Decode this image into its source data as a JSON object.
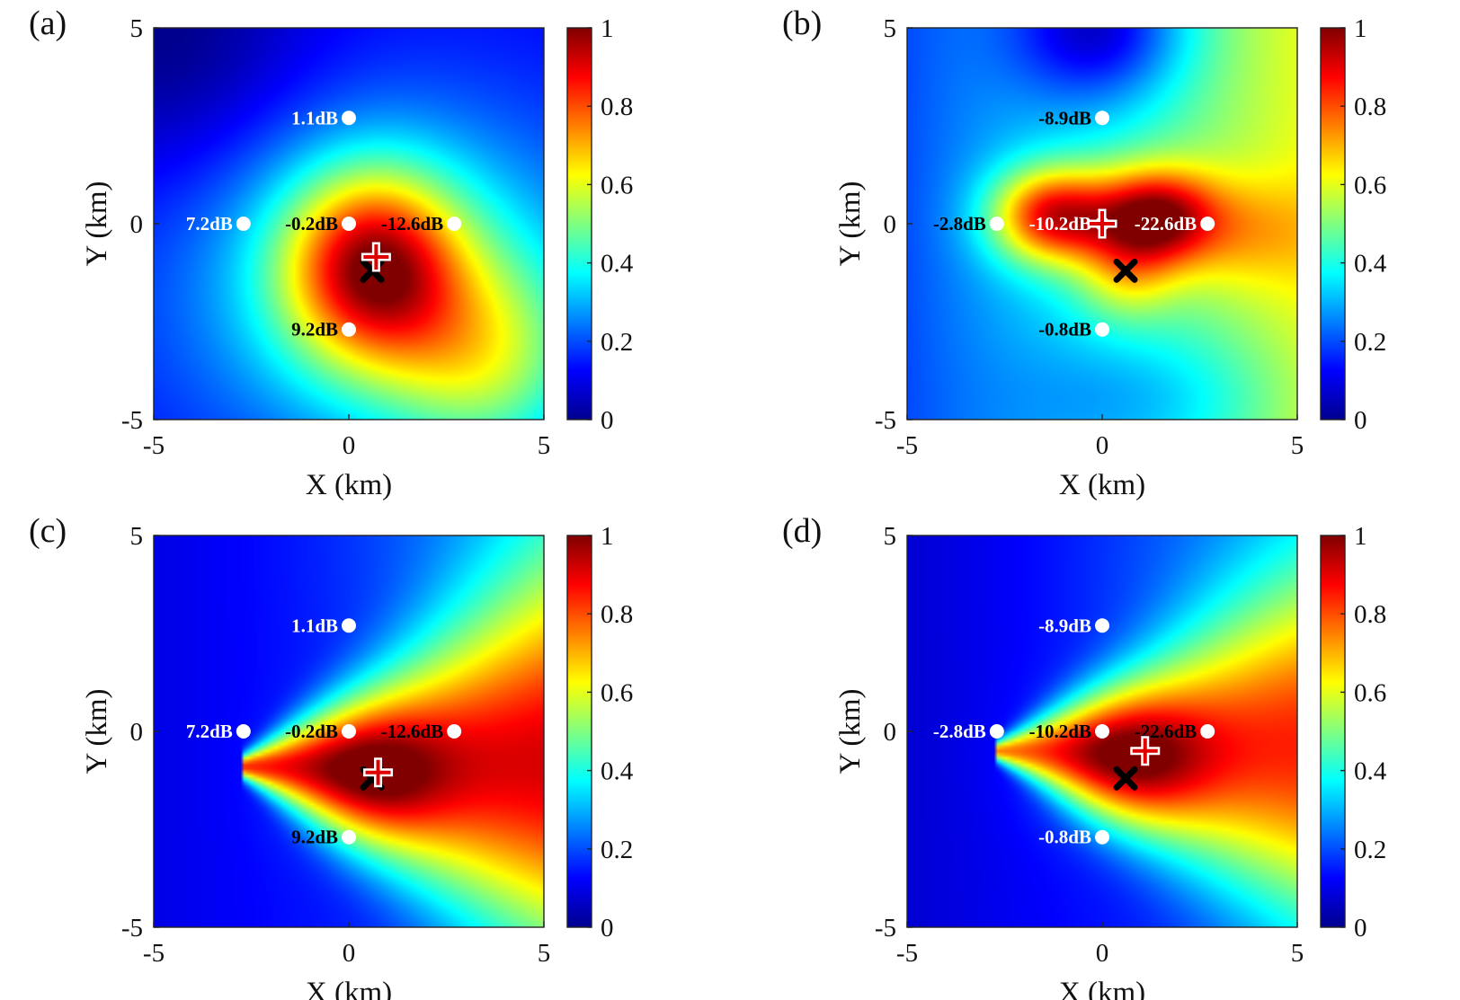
{
  "chart_data": [
    {
      "panel": "(a)",
      "type": "heatmap",
      "xlabel": "X (km)",
      "ylabel": "Y (km)",
      "xlim": [
        -5,
        5
      ],
      "ylim": [
        -5,
        5
      ],
      "xticks": [
        "-5",
        "0",
        "5"
      ],
      "yticks": [
        "-5",
        "0",
        "5"
      ],
      "colorbar": {
        "range": [
          0,
          1
        ],
        "ticks": [
          "0",
          "0.2",
          "0.4",
          "0.6",
          "0.8",
          "1"
        ],
        "colormap": "jet"
      },
      "sensors": [
        {
          "x": 0,
          "y": 2.7,
          "label": "1.1dB"
        },
        {
          "x": -2.7,
          "y": 0,
          "label": "7.2dB"
        },
        {
          "x": 0,
          "y": 0,
          "label": "-0.2dB"
        },
        {
          "x": 2.7,
          "y": 0,
          "label": "-12.6dB"
        },
        {
          "x": 0,
          "y": -2.7,
          "label": "9.2dB"
        }
      ],
      "true_source": {
        "x": 0.6,
        "y": -1.2
      },
      "estimate": {
        "x": 0.7,
        "y": -0.85
      }
    },
    {
      "panel": "(b)",
      "type": "heatmap",
      "xlabel": "X (km)",
      "ylabel": "Y (km)",
      "xlim": [
        -5,
        5
      ],
      "ylim": [
        -5,
        5
      ],
      "xticks": [
        "-5",
        "0",
        "5"
      ],
      "yticks": [
        "-5",
        "0",
        "5"
      ],
      "colorbar": {
        "range": [
          0,
          1
        ],
        "ticks": [
          "0",
          "0.2",
          "0.4",
          "0.6",
          "0.8",
          "1"
        ],
        "colormap": "jet"
      },
      "sensors": [
        {
          "x": 0,
          "y": 2.7,
          "label": "-8.9dB"
        },
        {
          "x": -2.7,
          "y": 0,
          "label": "-2.8dB"
        },
        {
          "x": 0,
          "y": 0,
          "label": "-10.2dB"
        },
        {
          "x": 2.7,
          "y": 0,
          "label": "-22.6dB"
        },
        {
          "x": 0,
          "y": -2.7,
          "label": "-0.8dB"
        }
      ],
      "true_source": {
        "x": 0.6,
        "y": -1.2
      },
      "estimate": {
        "x": 0.0,
        "y": 0.0
      }
    },
    {
      "panel": "(c)",
      "type": "heatmap",
      "xlabel": "X (km)",
      "ylabel": "Y (km)",
      "xlim": [
        -5,
        5
      ],
      "ylim": [
        -5,
        5
      ],
      "xticks": [
        "-5",
        "0",
        "5"
      ],
      "yticks": [
        "-5",
        "0",
        "5"
      ],
      "colorbar": {
        "range": [
          0,
          1
        ],
        "ticks": [
          "0",
          "0.2",
          "0.4",
          "0.6",
          "0.8",
          "1"
        ],
        "colormap": "jet"
      },
      "sensors": [
        {
          "x": 0,
          "y": 2.7,
          "label": "1.1dB"
        },
        {
          "x": -2.7,
          "y": 0,
          "label": "7.2dB"
        },
        {
          "x": 0,
          "y": 0,
          "label": "-0.2dB"
        },
        {
          "x": 2.7,
          "y": 0,
          "label": "-12.6dB"
        },
        {
          "x": 0,
          "y": -2.7,
          "label": "9.2dB"
        }
      ],
      "true_source": {
        "x": 0.6,
        "y": -1.2
      },
      "estimate": {
        "x": 0.75,
        "y": -1.05
      }
    },
    {
      "panel": "(d)",
      "type": "heatmap",
      "xlabel": "X (km)",
      "ylabel": "Y (km)",
      "xlim": [
        -5,
        5
      ],
      "ylim": [
        -5,
        5
      ],
      "xticks": [
        "-5",
        "0",
        "5"
      ],
      "yticks": [
        "-5",
        "0",
        "5"
      ],
      "colorbar": {
        "range": [
          0,
          1
        ],
        "ticks": [
          "0",
          "0.2",
          "0.4",
          "0.6",
          "0.8",
          "1"
        ],
        "colormap": "jet"
      },
      "sensors": [
        {
          "x": 0,
          "y": 2.7,
          "label": "-8.9dB"
        },
        {
          "x": -2.7,
          "y": 0,
          "label": "-2.8dB"
        },
        {
          "x": 0,
          "y": 0,
          "label": "-10.2dB"
        },
        {
          "x": 2.7,
          "y": 0,
          "label": "-22.6dB"
        },
        {
          "x": 0,
          "y": -2.7,
          "label": "-0.8dB"
        }
      ],
      "true_source": {
        "x": 0.6,
        "y": -1.2
      },
      "estimate": {
        "x": 1.1,
        "y": -0.5
      }
    }
  ]
}
